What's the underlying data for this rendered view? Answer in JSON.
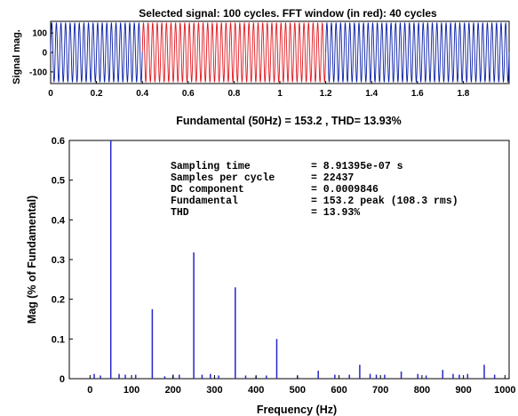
{
  "chart_data": [
    {
      "type": "line",
      "title": "Selected signal: 100 cycles. FFT window (in red): 40 cycles",
      "ylabel": "Signal mag.",
      "xlabel": "",
      "xlim": [
        0,
        2
      ],
      "ylim": [
        -160,
        160
      ],
      "xticks": [
        0,
        0.2,
        0.4,
        0.6,
        0.8,
        1,
        1.2,
        1.4,
        1.6,
        1.8
      ],
      "yticks": [
        100,
        0,
        -100
      ],
      "signal": {
        "cycles": 100,
        "frequency_hz": 50,
        "amplitude": 153.2,
        "t_start": 0,
        "t_end": 2
      },
      "fft_window": {
        "cycles": 40,
        "t_start": 0.4,
        "t_end": 1.2
      },
      "colors": {
        "signal": "#0a1fa8",
        "window": "#e0181f"
      }
    },
    {
      "type": "bar",
      "title": "Fundamental (50Hz) = 153.2 , THD= 13.93%",
      "xlabel": "Frequency (Hz)",
      "ylabel": "Mag (% of Fundamental)",
      "xlim": [
        -50,
        1010
      ],
      "ylim": [
        0,
        0.6
      ],
      "xticks": [
        0,
        100,
        200,
        300,
        400,
        500,
        600,
        700,
        800,
        900,
        1000
      ],
      "yticks": [
        0,
        0.1,
        0.2,
        0.3,
        0.4,
        0.5,
        0.6
      ],
      "bar_color": "#2626c8",
      "x": [
        10,
        25,
        50,
        70,
        85,
        110,
        150,
        180,
        200,
        215,
        250,
        270,
        290,
        310,
        350,
        375,
        400,
        425,
        450,
        500,
        550,
        590,
        625,
        650,
        675,
        690,
        710,
        750,
        790,
        810,
        850,
        875,
        890,
        910,
        950,
        975
      ],
      "values": [
        0.012,
        0.008,
        0.6,
        0.012,
        0.01,
        0.01,
        0.175,
        0.006,
        0.01,
        0.01,
        0.318,
        0.01,
        0.012,
        0.008,
        0.23,
        0.008,
        0.006,
        0.008,
        0.1,
        0.006,
        0.02,
        0.01,
        0.01,
        0.035,
        0.012,
        0.01,
        0.01,
        0.018,
        0.012,
        0.008,
        0.022,
        0.012,
        0.01,
        0.012,
        0.035,
        0.01
      ],
      "annotation": [
        {
          "label": "Sampling time",
          "value": "= 8.91395e-07 s"
        },
        {
          "label": "Samples per cycle",
          "value": "= 22437"
        },
        {
          "label": "DC component",
          "value": "= 0.0009846"
        },
        {
          "label": "Fundamental",
          "value": "= 153.2 peak (108.3 rms)"
        },
        {
          "label": "THD",
          "value": "= 13.93%"
        }
      ]
    }
  ]
}
